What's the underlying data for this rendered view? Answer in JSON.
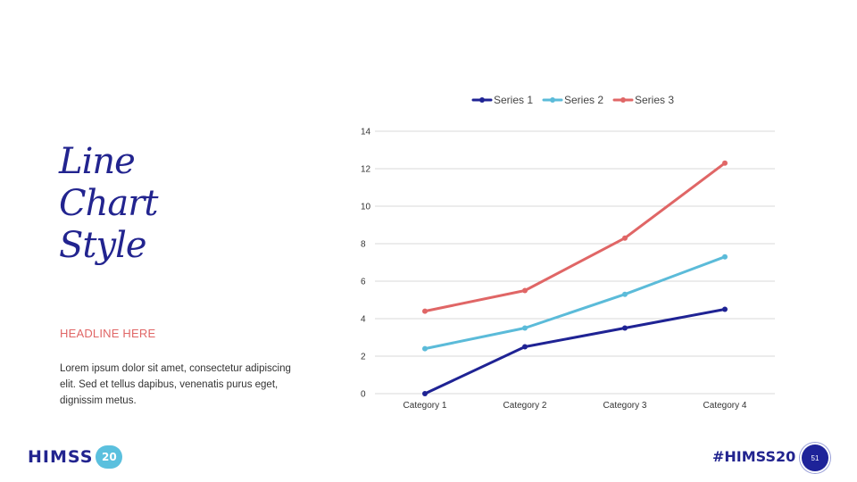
{
  "slide": {
    "title_lines": [
      "Line",
      "Chart",
      "Style"
    ],
    "headline": "HEADLINE HERE",
    "body": "Lorem ipsum dolor sit amet, consectetur adipiscing elit. Sed et tellus dapibus, venenatis purus eget, dignissim metus.",
    "logo_word": "HIMSS",
    "logo_badge": "20",
    "hashtag": "#HIMSS20",
    "page_number": "51"
  },
  "colors": {
    "title": "#22248f",
    "headline": "#e06666",
    "grid": "#d9d9d9"
  },
  "chart_data": {
    "type": "line",
    "categories": [
      "Category 1",
      "Category 2",
      "Category 3",
      "Category 4"
    ],
    "series": [
      {
        "name": "Series 1",
        "color": "#1f2394",
        "values": [
          0,
          2.5,
          3.5,
          4.5
        ]
      },
      {
        "name": "Series 2",
        "color": "#5bbbd9",
        "values": [
          2.4,
          3.5,
          5.3,
          7.3
        ]
      },
      {
        "name": "Series 3",
        "color": "#e06666",
        "values": [
          4.4,
          5.5,
          8.3,
          12.3
        ]
      }
    ],
    "y_ticks": [
      0,
      2,
      4,
      6,
      8,
      10,
      12,
      14
    ],
    "ylim": [
      0,
      14
    ],
    "grid": true,
    "legend": "top-center",
    "title": "",
    "xlabel": "",
    "ylabel": ""
  }
}
